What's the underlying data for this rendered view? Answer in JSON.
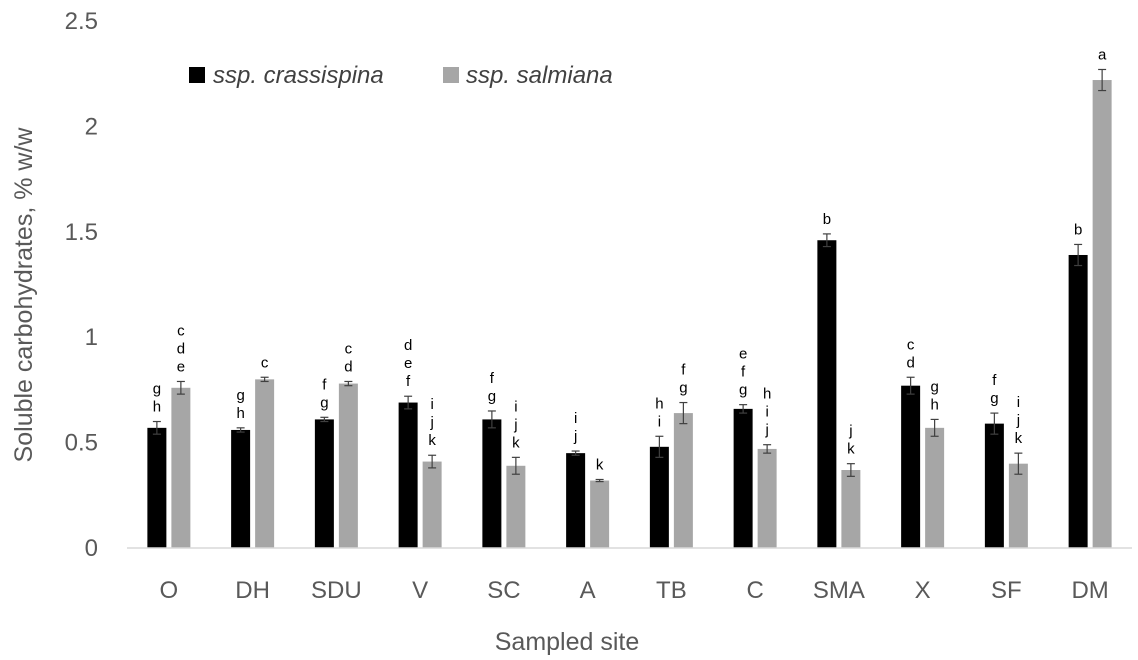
{
  "chart_data": {
    "type": "bar",
    "title": "",
    "xlabel": "Sampled site",
    "ylabel": "Soluble carbohydrates, % w/w",
    "ylim": [
      0,
      2.5
    ],
    "yticks": [
      "0",
      "0.5",
      "1",
      "1.5",
      "2",
      "2.5"
    ],
    "ytick_values": [
      0,
      0.5,
      1,
      1.5,
      2,
      2.5
    ],
    "categories": [
      "O",
      "DH",
      "SDU",
      "V",
      "SC",
      "A",
      "TB",
      "C",
      "SMA",
      "X",
      "SF",
      "DM"
    ],
    "legend_position": "top-left",
    "series": [
      {
        "name": "ssp. crassispina",
        "color": "#000000",
        "values": [
          0.57,
          0.56,
          0.61,
          0.69,
          0.61,
          0.45,
          0.48,
          0.66,
          1.46,
          0.77,
          0.59,
          1.39
        ],
        "errors": [
          0.03,
          0.01,
          0.01,
          0.03,
          0.04,
          0.01,
          0.05,
          0.02,
          0.03,
          0.04,
          0.05,
          0.05
        ],
        "labels": [
          [
            "g",
            "h"
          ],
          [
            "g",
            "h"
          ],
          [
            "f",
            "g"
          ],
          [
            "d",
            "e",
            "f"
          ],
          [
            "f",
            "g"
          ],
          [
            "i",
            "j"
          ],
          [
            "h",
            "i"
          ],
          [
            "e",
            "f",
            "g"
          ],
          [
            "b"
          ],
          [
            "c",
            "d"
          ],
          [
            "f",
            "g"
          ],
          [
            "b"
          ]
        ]
      },
      {
        "name": "ssp. salmiana",
        "color": "#a6a6a6",
        "values": [
          0.76,
          0.8,
          0.78,
          0.41,
          0.39,
          0.32,
          0.64,
          0.47,
          0.37,
          0.57,
          0.4,
          2.22
        ],
        "errors": [
          0.03,
          0.01,
          0.01,
          0.03,
          0.04,
          0.005,
          0.05,
          0.02,
          0.03,
          0.04,
          0.05,
          0.05
        ],
        "labels": [
          [
            "c",
            "d",
            "e"
          ],
          [
            "c"
          ],
          [
            "c",
            "d"
          ],
          [
            "i",
            "j",
            "k"
          ],
          [
            "i",
            "j",
            "k"
          ],
          [
            "k"
          ],
          [
            "f",
            "g"
          ],
          [
            "h",
            "i",
            "j"
          ],
          [
            "j",
            "k"
          ],
          [
            "g",
            "h"
          ],
          [
            "i",
            "j",
            "k"
          ],
          [
            "a"
          ]
        ]
      }
    ]
  }
}
